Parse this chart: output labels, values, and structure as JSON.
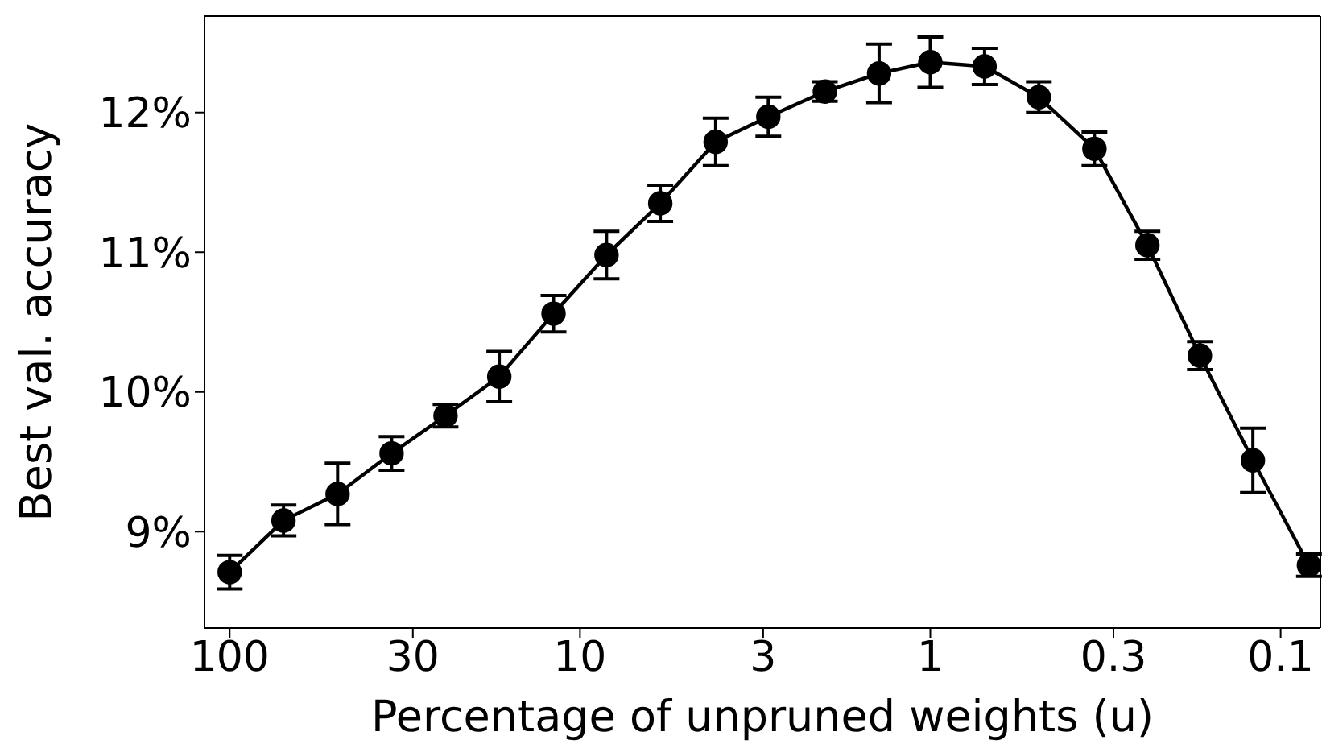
{
  "chart_data": {
    "type": "line",
    "xlabel": "Percentage of unpruned weights (u)",
    "ylabel": "Best val. accuracy",
    "x": [
      100,
      70.2,
      49.2,
      34.5,
      24.2,
      17.0,
      11.9,
      8.4,
      5.9,
      4.1,
      2.9,
      2.0,
      1.4,
      1.0,
      0.7,
      0.49,
      0.34,
      0.24,
      0.17,
      0.12,
      0.083
    ],
    "series": [
      {
        "color": "#000000",
        "values": [
          8.71,
          9.08,
          9.27,
          9.56,
          9.83,
          10.11,
          10.56,
          10.98,
          11.35,
          11.79,
          11.97,
          12.15,
          12.28,
          12.36,
          12.33,
          12.11,
          11.74,
          11.05,
          10.26,
          9.51,
          8.76
        ],
        "errors": [
          0.12,
          0.11,
          0.22,
          0.12,
          0.08,
          0.18,
          0.13,
          0.17,
          0.13,
          0.17,
          0.14,
          0.07,
          0.21,
          0.18,
          0.13,
          0.11,
          0.12,
          0.1,
          0.1,
          0.23,
          0.08
        ]
      }
    ],
    "log": "x",
    "marker": "circle",
    "line_style": "solid",
    "xlim": [
      118,
      0.077
    ],
    "xticks": [
      100,
      30,
      10,
      3,
      1,
      0.3,
      0.1
    ],
    "ylim": [
      8.31,
      12.69
    ],
    "yticks": [
      {
        "value": 9,
        "label": "9%"
      },
      {
        "value": 10,
        "label": "10%"
      },
      {
        "value": 11,
        "label": "11%"
      },
      {
        "value": 12,
        "label": "12%"
      }
    ]
  }
}
